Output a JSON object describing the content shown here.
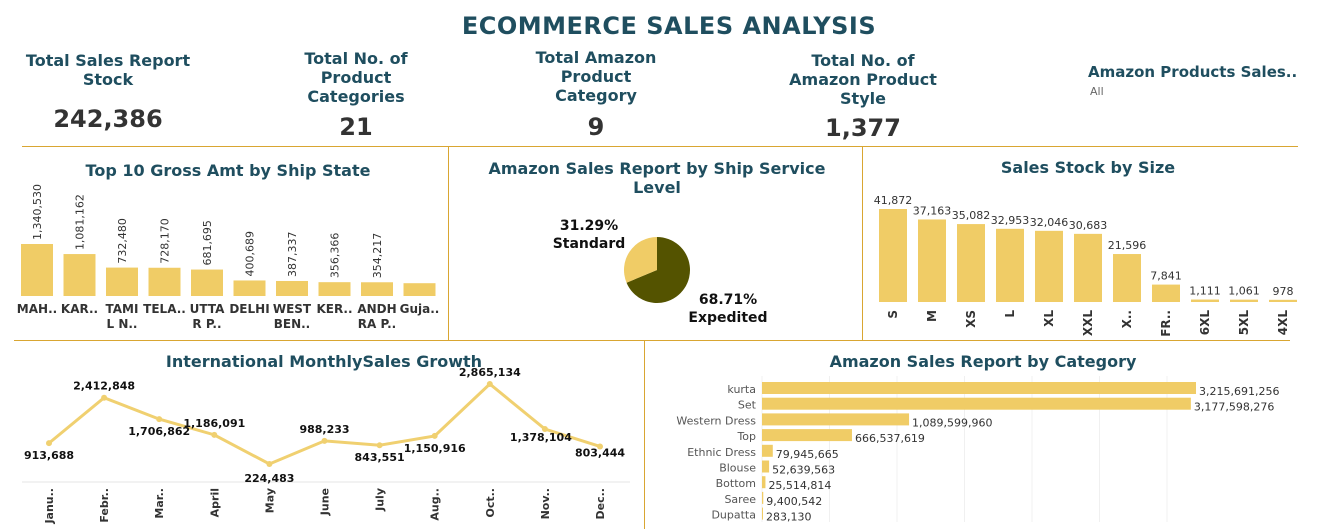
{
  "title": "ECOMMERCE SALES ANALYSIS",
  "kpis": [
    {
      "label": "Total Sales Report Stock",
      "value": "242,386"
    },
    {
      "label": "Total No. of Product Categories",
      "value": "21"
    },
    {
      "label": "Total Amazon Product Category",
      "value": "9"
    },
    {
      "label": "Total No. of Amazon Product Style",
      "value": "1,377"
    }
  ],
  "filter": {
    "label": "Amazon Products Sales..",
    "value": "All"
  },
  "colors": {
    "bar": "#f0cc66",
    "dark": "#545300",
    "line": "#f0d070",
    "title": "#1f4e5f",
    "divider": "#d9a632"
  },
  "chart_data": [
    {
      "type": "bar",
      "title": "Top 10 Gross Amt by Ship State",
      "categories": [
        "MAH..",
        "KAR..",
        "TAMI L N..",
        "TELA..",
        "UTTA R P..",
        "DELHI",
        "WEST BEN..",
        "KER..",
        "ANDH RA P..",
        "Guja.."
      ],
      "values": [
        1340530,
        1081162,
        732480,
        728170,
        681695,
        400689,
        387337,
        356366,
        354217,
        330000
      ],
      "labels": [
        "1,340,530",
        "1,081,162",
        "732,480",
        "728,170",
        "681,695",
        "400,689",
        "387,337",
        "356,366",
        "354,217",
        ""
      ]
    },
    {
      "type": "pie",
      "title": "Amazon Sales Report by Ship Service Level",
      "slices": [
        {
          "name": "Expedited",
          "value": 68.71,
          "label": "68.71%"
        },
        {
          "name": "Standard",
          "value": 31.29,
          "label": "31.29%"
        }
      ]
    },
    {
      "type": "bar",
      "title": "Sales Stock by Size",
      "categories": [
        "S",
        "M",
        "XS",
        "L",
        "XL",
        "XXL",
        "X..",
        "FR..",
        "6XL",
        "5XL",
        "4XL"
      ],
      "values": [
        41872,
        37163,
        35082,
        32953,
        32046,
        30683,
        21596,
        7841,
        1111,
        1061,
        978
      ],
      "labels": [
        "41,872",
        "37,163",
        "35,082",
        "32,953",
        "32,046",
        "30,683",
        "21,596",
        "7,841",
        "1,111",
        "1,061",
        "978"
      ]
    },
    {
      "type": "line",
      "title": "International MonthlySales Growth",
      "categories": [
        "Janu..",
        "Febr..",
        "Mar..",
        "April",
        "May",
        "June",
        "July",
        "Aug..",
        "Oct..",
        "Nov..",
        "Dec.."
      ],
      "values": [
        913688,
        2412848,
        1706862,
        1186091,
        224483,
        988233,
        843551,
        1150916,
        2865134,
        1378104,
        803444
      ],
      "labels": [
        "913,688",
        "2,412,848",
        "1,706,862",
        "1,186,091",
        "224,483",
        "988,233",
        "843,551",
        "1,150,916",
        "2,865,134",
        "1,378,104",
        "803,444"
      ]
    },
    {
      "type": "bar",
      "orientation": "horizontal",
      "title": "Amazon Sales Report by Category",
      "categories": [
        "kurta",
        "Set",
        "Western Dress",
        "Top",
        "Ethnic Dress",
        "Blouse",
        "Bottom",
        "Saree",
        "Dupatta"
      ],
      "values": [
        3215691256,
        3177598276,
        1089599960,
        666537619,
        79945665,
        52639563,
        25514814,
        9400542,
        283130
      ],
      "labels": [
        "3,215,691,256",
        "3,177,598,276",
        "1,089,599,960",
        "666,537,619",
        "79,945,665",
        "52,639,563",
        "25,514,814",
        "9,400,542",
        "283,130"
      ]
    }
  ]
}
